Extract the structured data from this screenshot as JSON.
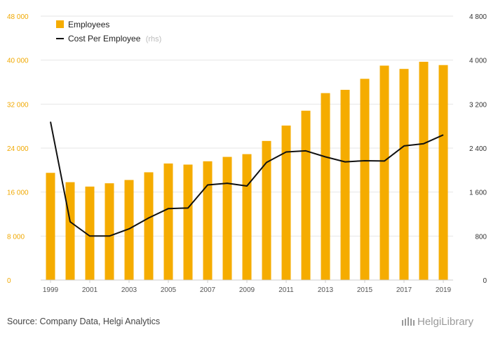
{
  "chart_data": {
    "type": "bar+line",
    "x": [
      "1999",
      "2000",
      "2001",
      "2002",
      "2003",
      "2004",
      "2005",
      "2006",
      "2007",
      "2008",
      "2009",
      "2010",
      "2011",
      "2012",
      "2013",
      "2014",
      "2015",
      "2016",
      "2017",
      "2018",
      "2019"
    ],
    "x_tick_labels": [
      "1999",
      "2001",
      "2003",
      "2005",
      "2007",
      "2009",
      "2011",
      "2013",
      "2015",
      "2017",
      "2019"
    ],
    "series": [
      {
        "name": "Employees",
        "type": "bar",
        "axis": "left",
        "color": "#f5ac00",
        "values": [
          19500,
          17800,
          17000,
          17600,
          18200,
          19600,
          21200,
          21000,
          21600,
          22400,
          22900,
          25300,
          28100,
          30800,
          34000,
          34600,
          36600,
          39000,
          38400,
          39700,
          39100
        ]
      },
      {
        "name": "Cost Per Employee",
        "name_suffix": "(rhs)",
        "type": "line",
        "axis": "right",
        "color": "#111111",
        "values": [
          2880,
          1060,
          800,
          800,
          930,
          1130,
          1300,
          1310,
          1730,
          1760,
          1710,
          2140,
          2330,
          2350,
          2240,
          2150,
          2170,
          2165,
          2440,
          2480,
          2640
        ]
      }
    ],
    "y_left": {
      "min": 0,
      "max": 48000,
      "ticks": [
        "0",
        "8 000",
        "16 000",
        "24 000",
        "32 000",
        "40 000",
        "48 000"
      ],
      "color": "#f0a800"
    },
    "y_right": {
      "min": 0,
      "max": 4800,
      "ticks": [
        "0",
        "800",
        "1 600",
        "2 400",
        "3 200",
        "4 000",
        "4 800"
      ]
    },
    "grid": true,
    "legend_position": "top-left"
  },
  "footer": {
    "source": "Source: Company Data, Helgi Analytics",
    "logo": "HelgiLibrary"
  }
}
